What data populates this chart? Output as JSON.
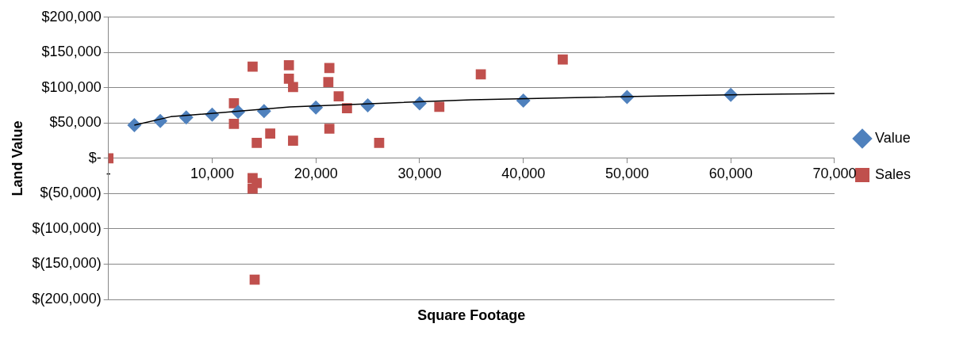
{
  "chart_data": {
    "type": "scatter",
    "xlabel": "Square Footage",
    "ylabel": "Land Value",
    "xlim": [
      0,
      70000
    ],
    "xticks": [
      {
        "value": 0,
        "label": "-"
      },
      {
        "value": 10000,
        "label": "10,000"
      },
      {
        "value": 20000,
        "label": "20,000"
      },
      {
        "value": 30000,
        "label": "30,000"
      },
      {
        "value": 40000,
        "label": "40,000"
      },
      {
        "value": 50000,
        "label": "50,000"
      },
      {
        "value": 60000,
        "label": "60,000"
      },
      {
        "value": 70000,
        "label": "70,000"
      }
    ],
    "ylim": [
      -200000,
      200000
    ],
    "yticks": [
      {
        "value": -200000,
        "label": "$(200,000)"
      },
      {
        "value": -150000,
        "label": "$(150,000)"
      },
      {
        "value": -100000,
        "label": "$(100,000)"
      },
      {
        "value": -50000,
        "label": "$(50,000)"
      },
      {
        "value": 0,
        "label": "$-"
      },
      {
        "value": 50000,
        "label": "$50,000"
      },
      {
        "value": 100000,
        "label": "$100,000"
      },
      {
        "value": 150000,
        "label": "$150,000"
      },
      {
        "value": 200000,
        "label": "$200,000"
      }
    ],
    "grid": "y",
    "legend": "right",
    "series": [
      {
        "name": "Value",
        "color": "#4f81bd",
        "marker": "diamond",
        "x": [
          2500,
          5000,
          7500,
          10000,
          12500,
          15000,
          20000,
          25000,
          30000,
          40000,
          50000,
          60000
        ],
        "values": [
          47000,
          53000,
          58000,
          62000,
          66000,
          67000,
          72000,
          75000,
          78000,
          82000,
          87000,
          90000
        ]
      },
      {
        "name": "Sales",
        "color": "#c0504d",
        "marker": "square",
        "x": [
          0,
          13900,
          17400,
          17400,
          17800,
          21300,
          21200,
          22200,
          23000,
          12100,
          12100,
          14300,
          15600,
          17800,
          21300,
          26100,
          13900,
          14300,
          13900,
          14100,
          31900,
          35900,
          43800
        ],
        "values": [
          0,
          130000,
          132000,
          113000,
          101000,
          128000,
          108000,
          88000,
          71000,
          78000,
          49000,
          22000,
          35000,
          25000,
          42000,
          22000,
          -28000,
          -35000,
          -43000,
          -172000,
          73000,
          119000,
          140000
        ]
      },
      {
        "type": "line",
        "color": "#000000",
        "marker": "none",
        "x": [
          2500,
          6000,
          17500,
          35000,
          45000,
          55000,
          65000,
          70000
        ],
        "values": [
          47000,
          59000,
          73000,
          83000,
          86000,
          89000,
          91000,
          92000
        ]
      }
    ]
  }
}
